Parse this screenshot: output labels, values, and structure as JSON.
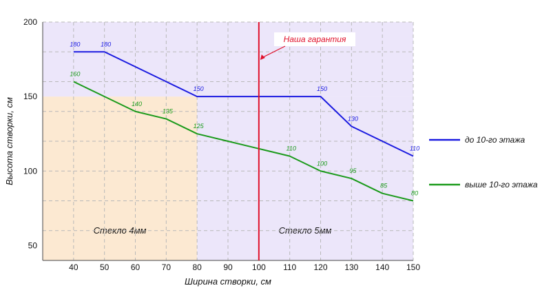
{
  "chart_data": {
    "type": "line",
    "xlabel": "Ширина створки, см",
    "ylabel": "Высота створки, см",
    "xlim": [
      30,
      150
    ],
    "ylim": [
      40,
      200
    ],
    "x_ticks": [
      "40",
      "50",
      "60",
      "70",
      "80",
      "90",
      "100",
      "110",
      "120",
      "130",
      "140",
      "150"
    ],
    "y_ticks": [
      "50",
      "100",
      "150",
      "200"
    ],
    "grid": true,
    "legend_placement": "right",
    "series": [
      {
        "name": "до 10-го этажа",
        "color": "#1a1ae0",
        "x": [
          40,
          50,
          60,
          70,
          80,
          90,
          100,
          110,
          120,
          130,
          140,
          150
        ],
        "y": [
          180,
          180,
          170,
          160,
          150,
          150,
          150,
          150,
          150,
          130,
          120,
          110
        ],
        "labels": [
          {
            "x": 40,
            "y": 180,
            "text": "180"
          },
          {
            "x": 50,
            "y": 180,
            "text": "180"
          },
          {
            "x": 80,
            "y": 150,
            "text": "150"
          },
          {
            "x": 120,
            "y": 150,
            "text": "150"
          },
          {
            "x": 130,
            "y": 130,
            "text": "130"
          },
          {
            "x": 150,
            "y": 110,
            "text": "110"
          }
        ]
      },
      {
        "name": "выше 10-го этажа",
        "color": "#1a9a1a",
        "x": [
          40,
          50,
          60,
          70,
          80,
          90,
          100,
          110,
          120,
          130,
          140,
          150
        ],
        "y": [
          160,
          150,
          140,
          135,
          125,
          120,
          115,
          110,
          100,
          95,
          85,
          80
        ],
        "labels": [
          {
            "x": 40,
            "y": 160,
            "text": "160"
          },
          {
            "x": 60,
            "y": 140,
            "text": "140"
          },
          {
            "x": 70,
            "y": 135,
            "text": "135"
          },
          {
            "x": 80,
            "y": 125,
            "text": "125"
          },
          {
            "x": 110,
            "y": 110,
            "text": "110"
          },
          {
            "x": 120,
            "y": 100,
            "text": "100"
          },
          {
            "x": 130,
            "y": 95,
            "text": "95"
          },
          {
            "x": 140,
            "y": 85,
            "text": "85"
          },
          {
            "x": 150,
            "y": 80,
            "text": "80"
          }
        ]
      }
    ],
    "regions": [
      {
        "label": "Стекло 4мм",
        "x_range": [
          30,
          80
        ],
        "y_range": [
          40,
          150
        ],
        "color": "#fce9d2"
      },
      {
        "label": "Стекло 5мм",
        "x_range": [
          80,
          150
        ],
        "y_range": [
          40,
          150
        ],
        "color": "#ece6fa"
      },
      {
        "label": "",
        "x_range": [
          30,
          150
        ],
        "y_range": [
          150,
          200
        ],
        "color": "#ece6fa"
      }
    ],
    "guarantee_line": {
      "x": 100,
      "label": "Наша гарантия",
      "color": "#e0102a"
    }
  }
}
